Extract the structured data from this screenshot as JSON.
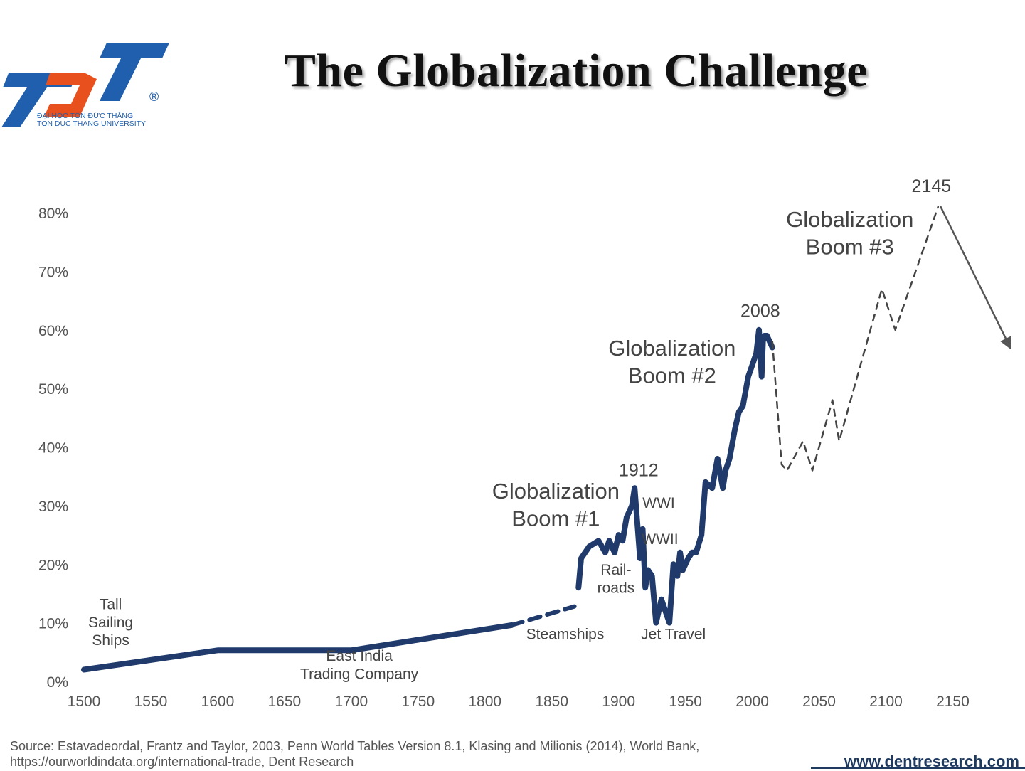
{
  "title": "The Globalization Challenge",
  "logo": {
    "letters": "TDT",
    "name_vi": "ĐẠI HỌC TÔN ĐỨC THẮNG",
    "name_en": "TON DUC THANG UNIVERSITY",
    "registered": "®",
    "colors": {
      "blue": "#1f5fad",
      "orange": "#e8501d"
    }
  },
  "chart_data": {
    "type": "line",
    "title": "",
    "xlabel": "",
    "ylabel": "",
    "xlim": [
      1500,
      2195
    ],
    "ylim": [
      0,
      80
    ],
    "x_ticks": [
      1500,
      1550,
      1600,
      1650,
      1700,
      1750,
      1800,
      1850,
      1900,
      1950,
      2000,
      2050,
      2100,
      2150
    ],
    "y_ticks": [
      "0%",
      "10%",
      "20%",
      "30%",
      "40%",
      "50%",
      "60%",
      "70%",
      "80%"
    ],
    "grid": false,
    "legend": "none",
    "series": [
      {
        "style": "solid",
        "color": "#1f3a6b",
        "x": [
          1500,
          1600,
          1700,
          1820
        ],
        "y": [
          2,
          5.3,
          5.3,
          9.6
        ]
      },
      {
        "style": "dashed",
        "color": "#1f3a6b",
        "x": [
          1820,
          1867
        ],
        "y": [
          9.6,
          12.8
        ]
      },
      {
        "style": "solid",
        "color": "#1f3a6b",
        "x": [
          1870,
          1872,
          1878,
          1885,
          1890,
          1893,
          1897,
          1900,
          1903,
          1906,
          1910,
          1912,
          1914,
          1916,
          1918,
          1920,
          1922,
          1925,
          1928,
          1932,
          1935,
          1938,
          1941,
          1944,
          1946,
          1948,
          1950,
          1952,
          1955,
          1958,
          1962,
          1965,
          1970,
          1974,
          1978,
          1980,
          1983,
          1987,
          1990,
          1993,
          1997,
          2000,
          2003,
          2005,
          2007,
          2008,
          2009,
          2011,
          2013,
          2015
        ],
        "y": [
          16,
          21,
          23,
          24,
          22,
          24,
          22,
          25,
          24,
          28,
          30,
          33,
          27,
          21,
          26,
          16,
          19,
          18,
          10,
          14,
          12,
          10,
          20,
          18,
          22,
          19,
          20,
          21,
          22,
          22,
          25,
          34,
          33,
          38,
          33,
          36,
          38,
          43,
          46,
          47,
          52,
          54,
          56,
          60,
          52,
          58,
          59,
          59,
          58,
          57
        ]
      },
      {
        "style": "dashed",
        "color": "#444444",
        "x": [
          2015,
          2022,
          2026,
          2038,
          2045,
          2060,
          2065,
          2097,
          2107,
          2139
        ],
        "y": [
          58,
          37,
          36,
          41,
          36,
          48,
          41,
          67,
          60,
          81
        ]
      },
      {
        "style": "arrow",
        "color": "#555555",
        "x": [
          2141,
          2193
        ],
        "y": [
          81,
          57
        ]
      }
    ],
    "annotations": [
      {
        "label": "Tall",
        "x": 1520,
        "y": 12.3
      },
      {
        "label": "Sailing",
        "x": 1520,
        "y": 9.2
      },
      {
        "label": "Ships",
        "x": 1520,
        "y": 6.2
      },
      {
        "label": "East India",
        "x": 1706,
        "y": 3.5
      },
      {
        "label": "Trading Company",
        "x": 1706,
        "y": 0.4
      },
      {
        "label": "Steamships",
        "x": 1860,
        "y": 7.2
      },
      {
        "label": "Rail-",
        "x": 1898,
        "y": 18.2
      },
      {
        "label": "roads",
        "x": 1898,
        "y": 15.1
      },
      {
        "label": "Jet Travel",
        "x": 1941,
        "y": 7.2
      },
      {
        "label": "WWI",
        "x": 1930,
        "y": 29.6
      },
      {
        "label": "WWII",
        "x": 1931,
        "y": 23.4
      },
      {
        "label": "1912",
        "x": 1915,
        "y": 35
      },
      {
        "label": "2008",
        "x": 2006,
        "y": 62.2
      },
      {
        "label": "2145",
        "x": 2134,
        "y": 83.5
      },
      {
        "label": "Globalization",
        "x": 1853,
        "y": 31.2
      },
      {
        "label": "Boom #1",
        "x": 1853,
        "y": 26.5
      },
      {
        "label": "Globalization",
        "x": 1940,
        "y": 55.6
      },
      {
        "label": "Boom #2",
        "x": 1940,
        "y": 50.9
      },
      {
        "label": "Globalization",
        "x": 2073,
        "y": 77.6
      },
      {
        "label": "Boom #3",
        "x": 2073,
        "y": 72.9
      }
    ]
  },
  "source": "Source: Estavadeordal, Frantz and Taylor, 2003, Penn World Tables Version 8.1, Klasing and Milionis (2014), World Bank, https://ourworldindata.org/international-trade, Dent Research",
  "website": "www.dentresearch.com"
}
